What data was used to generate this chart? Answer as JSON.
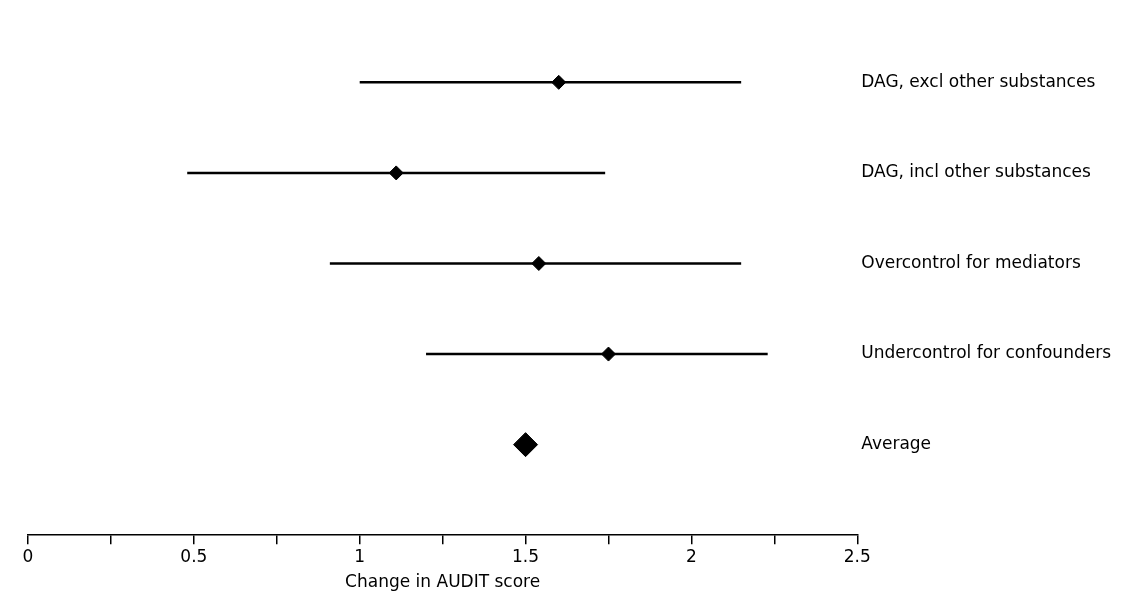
{
  "chart_data": {
    "type": "scatter",
    "orientation": "horizontal",
    "xlabel": "Change in AUDIT score",
    "categories": [
      "DAG, excl other substances",
      "DAG, incl other substances",
      "Overcontrol for mediators",
      "Undercontrol for confounders",
      "Average"
    ],
    "series": [
      {
        "color": "#000000",
        "values": [
          1.6,
          1.11,
          1.54,
          1.75,
          null
        ],
        "errors": [
          [
            1.0,
            2.15
          ],
          [
            0.48,
            1.74
          ],
          [
            0.91,
            2.15
          ],
          [
            1.2,
            2.23
          ],
          null
        ]
      },
      {
        "color": "#000000",
        "values": [
          null,
          null,
          null,
          null,
          1.5
        ]
      }
    ],
    "xlim": [
      0,
      2.5
    ],
    "xticks": [
      0,
      {
        "value": 0.25,
        "label": null
      },
      0.5,
      {
        "value": 0.75,
        "label": null
      },
      1,
      {
        "value": 1.25,
        "label": null
      },
      1.5,
      {
        "value": 1.75,
        "label": null
      },
      2,
      {
        "value": 2.25,
        "label": null
      },
      2.5
    ],
    "marker": "diamond",
    "grid": false,
    "legend": false
  }
}
